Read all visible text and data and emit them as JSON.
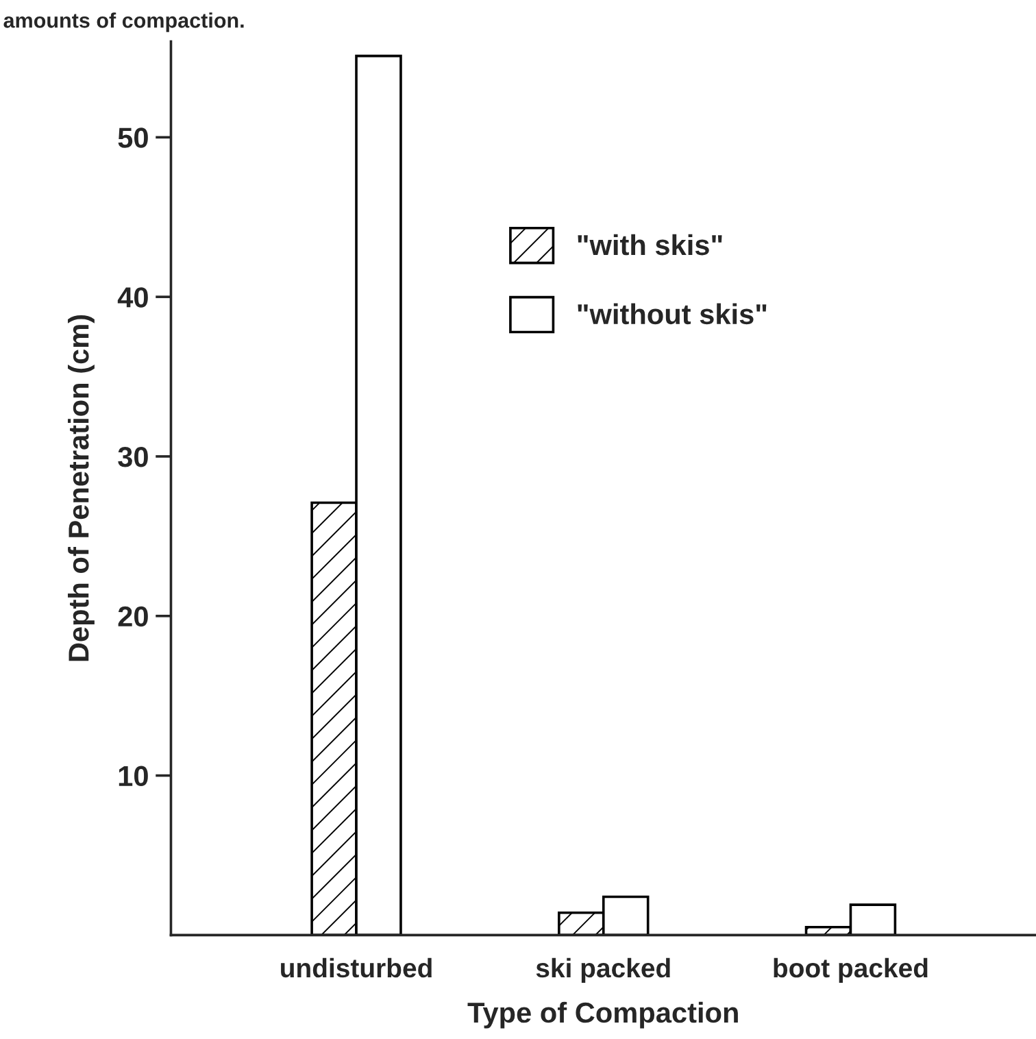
{
  "chart_data": {
    "type": "bar",
    "title": "amounts of compaction.",
    "xlabel": "Type of Compaction",
    "ylabel": "Depth of Penetration (cm)",
    "categories": [
      "undisturbed",
      "ski packed",
      "boot packed"
    ],
    "series": [
      {
        "name": "\"with skis\"",
        "color": "#000000",
        "values": [
          27.1,
          1.4,
          0.5
        ]
      },
      {
        "name": "\"without skis\"",
        "color": "#ffffff",
        "values": [
          55.1,
          2.4,
          1.9
        ]
      }
    ],
    "ylim": [
      0,
      56
    ],
    "yticks": [
      10,
      20,
      30,
      40,
      50
    ],
    "grid": false,
    "legend": "top right"
  }
}
